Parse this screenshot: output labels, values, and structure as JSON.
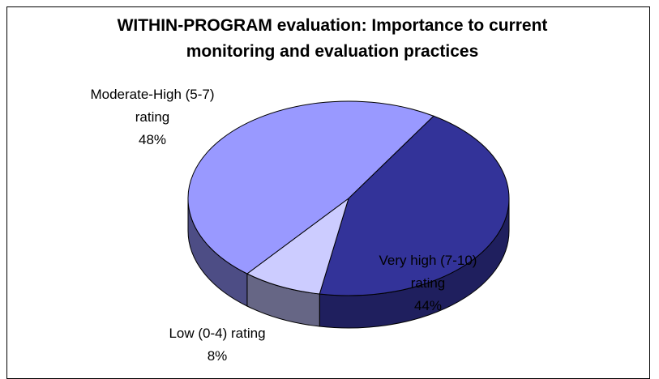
{
  "chart_data": {
    "type": "pie",
    "title": "WITHIN-PROGRAM evaluation: Importance to current monitoring and evaluation practices",
    "categories": [
      "Very high (7-10) rating",
      "Low (0-4) rating",
      "Moderate-High (5-7) rating"
    ],
    "values": [
      44,
      8,
      48
    ],
    "value_labels": [
      "44%",
      "8%",
      "48%"
    ],
    "colors": [
      "#333399",
      "#ccccff",
      "#9999ff"
    ],
    "side_colors": [
      "#1f1f5e",
      "#666685",
      "#4d4d85"
    ]
  }
}
